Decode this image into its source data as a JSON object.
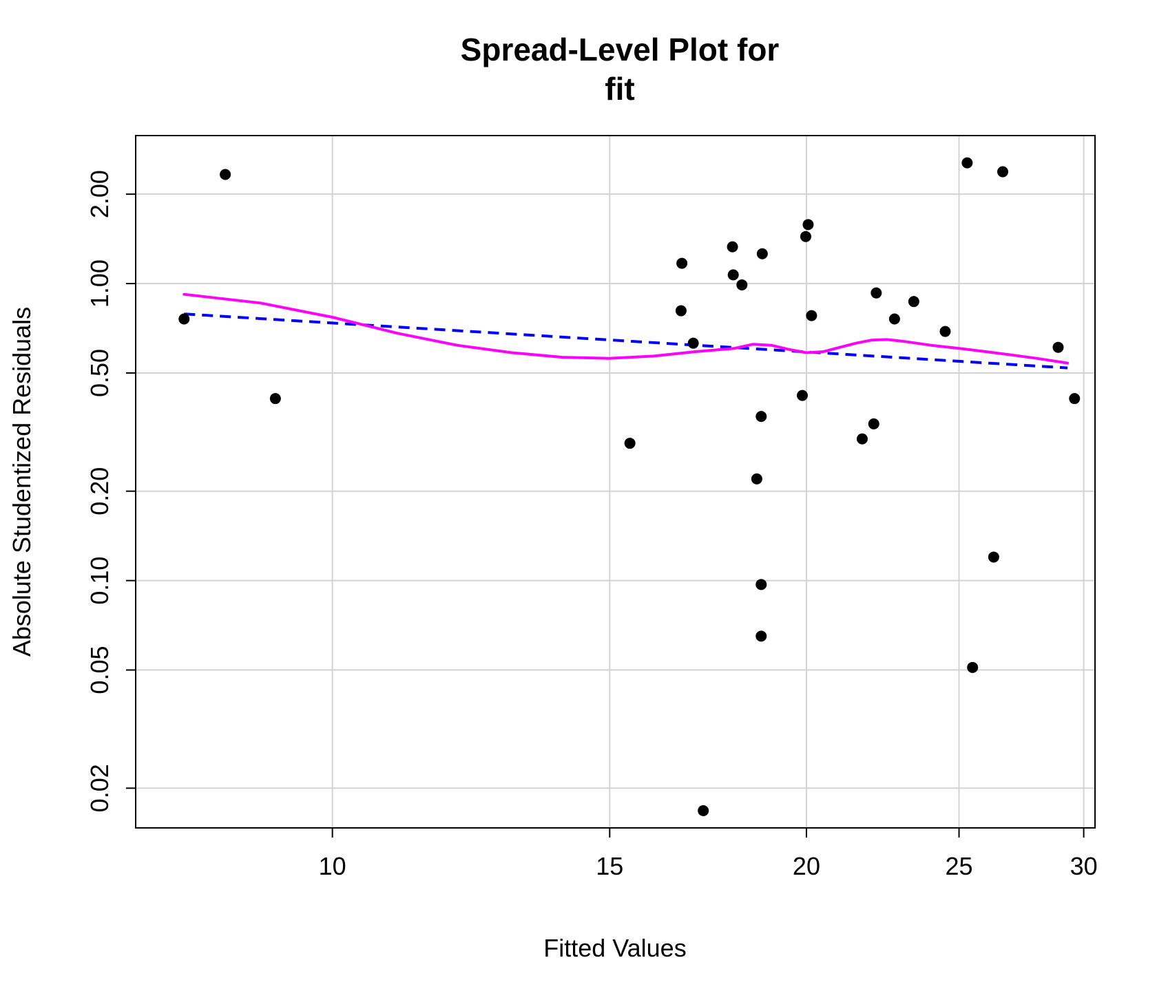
{
  "chart_data": {
    "type": "scatter",
    "title": [
      "Spread-Level Plot for",
      "fit"
    ],
    "xlabel": "Fitted Values",
    "ylabel": "Absolute Studentized Residuals",
    "x_scale": "log",
    "y_scale": "log",
    "xlim": [
      7.5,
      30.5
    ],
    "ylim": [
      0.0147,
      3.15
    ],
    "x_ticks": [
      10,
      15,
      20,
      25,
      30
    ],
    "x_tick_labels": [
      "10",
      "15",
      "20",
      "25",
      "30"
    ],
    "y_ticks": [
      0.02,
      0.05,
      0.1,
      0.2,
      0.5,
      1.0,
      2.0
    ],
    "y_tick_labels": [
      "0.02",
      "0.05",
      "0.10",
      "0.20",
      "0.50",
      "1.00",
      "2.00"
    ],
    "grid": true,
    "points": [
      {
        "x": 8.05,
        "y": 0.76
      },
      {
        "x": 8.55,
        "y": 2.33
      },
      {
        "x": 9.2,
        "y": 0.41
      },
      {
        "x": 15.45,
        "y": 0.29
      },
      {
        "x": 16.65,
        "y": 0.81
      },
      {
        "x": 16.67,
        "y": 1.17
      },
      {
        "x": 16.95,
        "y": 0.63
      },
      {
        "x": 17.2,
        "y": 0.0168
      },
      {
        "x": 17.95,
        "y": 1.33
      },
      {
        "x": 17.97,
        "y": 1.07
      },
      {
        "x": 18.2,
        "y": 0.99
      },
      {
        "x": 18.6,
        "y": 0.22
      },
      {
        "x": 18.72,
        "y": 0.357
      },
      {
        "x": 18.72,
        "y": 0.097
      },
      {
        "x": 18.72,
        "y": 0.065
      },
      {
        "x": 18.75,
        "y": 1.26
      },
      {
        "x": 19.88,
        "y": 0.42
      },
      {
        "x": 19.98,
        "y": 1.44
      },
      {
        "x": 20.05,
        "y": 1.58
      },
      {
        "x": 20.15,
        "y": 0.78
      },
      {
        "x": 21.7,
        "y": 0.3
      },
      {
        "x": 22.07,
        "y": 0.337
      },
      {
        "x": 22.15,
        "y": 0.93
      },
      {
        "x": 22.75,
        "y": 0.76
      },
      {
        "x": 23.4,
        "y": 0.87
      },
      {
        "x": 24.5,
        "y": 0.69
      },
      {
        "x": 25.3,
        "y": 2.55
      },
      {
        "x": 25.5,
        "y": 0.051
      },
      {
        "x": 26.3,
        "y": 0.12
      },
      {
        "x": 26.65,
        "y": 2.38
      },
      {
        "x": 28.9,
        "y": 0.61
      },
      {
        "x": 29.6,
        "y": 0.41
      }
    ],
    "series": [
      {
        "style": "dashed",
        "color": "#0000ff",
        "x": [
          8.05,
          29.3
        ],
        "y": [
          0.79,
          0.52
        ]
      },
      {
        "style": "solid",
        "color": "#ff00ff",
        "x": [
          8.05,
          9.0,
          10.0,
          11.0,
          12.0,
          13.0,
          14.0,
          15.0,
          16.0,
          17.0,
          18.0,
          18.5,
          19.0,
          19.5,
          20.0,
          20.5,
          21.0,
          21.5,
          22.0,
          22.5,
          23.0,
          24.0,
          25.0,
          26.0,
          27.0,
          28.0,
          29.3
        ],
        "y": [
          0.92,
          0.86,
          0.77,
          0.68,
          0.62,
          0.585,
          0.565,
          0.56,
          0.57,
          0.59,
          0.605,
          0.625,
          0.62,
          0.6,
          0.585,
          0.59,
          0.61,
          0.63,
          0.645,
          0.648,
          0.64,
          0.62,
          0.605,
          0.59,
          0.575,
          0.56,
          0.54
        ]
      }
    ]
  }
}
